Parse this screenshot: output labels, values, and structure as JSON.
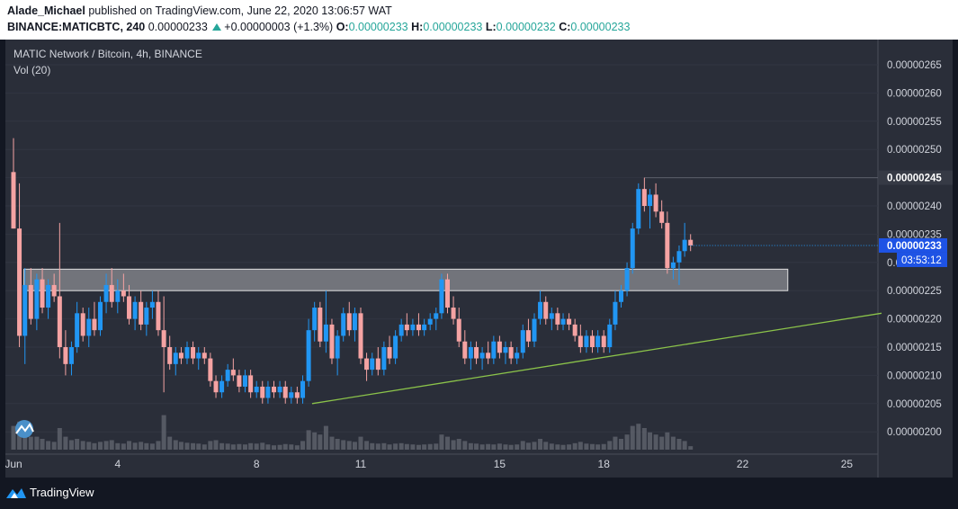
{
  "header": {
    "author": "Alade_Michael",
    "published_text": "published on TradingView.com, June 22, 2020 13:06:57 WAT",
    "symbol": "BINANCE:MATICBTC, 240",
    "last_price": "0.00000233",
    "change": "+0.00000003 (+1.3%)",
    "o_label": "O:",
    "o_value": "0.00000233",
    "h_label": "H:",
    "h_value": "0.00000233",
    "l_label": "L:",
    "l_value": "0.00000232",
    "c_label": "C:",
    "c_value": "0.00000233"
  },
  "legend": {
    "title": "MATIC Network / Bitcoin, 4h, BINANCE",
    "volume": "Vol (20)"
  },
  "footer": {
    "brand": "TradingView"
  },
  "colors": {
    "background": "#2a2e39",
    "up": "#2196f3",
    "down": "#f5a3a3",
    "volume": "#5d606b",
    "zone": "#c9cacd",
    "trendline": "#8bc34a",
    "price_badge": "#1e53e5",
    "header_value": "#26a69a"
  },
  "chart_data": {
    "type": "candlestick",
    "x_ticks": [
      "Jun",
      "4",
      "8",
      "11",
      "15",
      "18",
      "22",
      "25"
    ],
    "y_ticks": [
      "0.00000265",
      "0.00000260",
      "0.00000255",
      "0.00000250",
      "0.00000245",
      "0.00000240",
      "0.00000235",
      "0.00000230",
      "0.00000225",
      "0.00000220",
      "0.00000215",
      "0.00000210",
      "0.00000205",
      "0.00000200"
    ],
    "ylim": [
      1.98e-06,
      2.67e-06
    ],
    "current_price_label": "0.00000233",
    "countdown_label": "03:53:12",
    "high_marker_label": "0.00000245",
    "high_marker_value": 2.45e-06,
    "resistance_zone": {
      "from_day": 1.3,
      "to_day": 23.3,
      "low": 2.25e-06,
      "high": 2.288e-06
    },
    "trendline": {
      "start": {
        "day": 9.6,
        "price": 2.05e-06
      },
      "end": {
        "day": 26.0,
        "price": 2.21e-06
      }
    },
    "candles": [
      {
        "day": 1.0,
        "o": 2.46e-06,
        "h": 2.52e-06,
        "l": 2.36e-06,
        "c": 2.36e-06,
        "v": 0.55
      },
      {
        "day": 1.17,
        "o": 2.36e-06,
        "h": 2.44e-06,
        "l": 2.15e-06,
        "c": 2.17e-06,
        "v": 0.65
      },
      {
        "day": 1.33,
        "o": 2.17e-06,
        "h": 2.29e-06,
        "l": 2.12e-06,
        "c": 2.26e-06,
        "v": 0.45
      },
      {
        "day": 1.5,
        "o": 2.26e-06,
        "h": 2.29e-06,
        "l": 2.19e-06,
        "c": 2.2e-06,
        "v": 0.3
      },
      {
        "day": 1.67,
        "o": 2.2e-06,
        "h": 2.28e-06,
        "l": 2.18e-06,
        "c": 2.27e-06,
        "v": 0.3
      },
      {
        "day": 1.83,
        "o": 2.27e-06,
        "h": 2.29e-06,
        "l": 2.21e-06,
        "c": 2.22e-06,
        "v": 0.25
      },
      {
        "day": 2.0,
        "o": 2.22e-06,
        "h": 2.27e-06,
        "l": 2.2e-06,
        "c": 2.26e-06,
        "v": 0.2
      },
      {
        "day": 2.17,
        "o": 2.26e-06,
        "h": 2.28e-06,
        "l": 2.23e-06,
        "c": 2.24e-06,
        "v": 0.18
      },
      {
        "day": 2.33,
        "o": 2.24e-06,
        "h": 2.37e-06,
        "l": 2.13e-06,
        "c": 2.15e-06,
        "v": 0.5
      },
      {
        "day": 2.5,
        "o": 2.15e-06,
        "h": 2.18e-06,
        "l": 2.1e-06,
        "c": 2.12e-06,
        "v": 0.3
      },
      {
        "day": 2.67,
        "o": 2.12e-06,
        "h": 2.16e-06,
        "l": 2.1e-06,
        "c": 2.15e-06,
        "v": 0.22
      },
      {
        "day": 2.83,
        "o": 2.15e-06,
        "h": 2.23e-06,
        "l": 2.14e-06,
        "c": 2.21e-06,
        "v": 0.25
      },
      {
        "day": 3.0,
        "o": 2.21e-06,
        "h": 2.22e-06,
        "l": 2.16e-06,
        "c": 2.17e-06,
        "v": 0.2
      },
      {
        "day": 3.17,
        "o": 2.17e-06,
        "h": 2.22e-06,
        "l": 2.15e-06,
        "c": 2.2e-06,
        "v": 0.18
      },
      {
        "day": 3.33,
        "o": 2.2e-06,
        "h": 2.23e-06,
        "l": 2.17e-06,
        "c": 2.18e-06,
        "v": 0.15
      },
      {
        "day": 3.5,
        "o": 2.18e-06,
        "h": 2.24e-06,
        "l": 2.17e-06,
        "c": 2.23e-06,
        "v": 0.18
      },
      {
        "day": 3.67,
        "o": 2.23e-06,
        "h": 2.28e-06,
        "l": 2.21e-06,
        "c": 2.26e-06,
        "v": 0.2
      },
      {
        "day": 3.83,
        "o": 2.26e-06,
        "h": 2.29e-06,
        "l": 2.22e-06,
        "c": 2.23e-06,
        "v": 0.22
      },
      {
        "day": 4.0,
        "o": 2.23e-06,
        "h": 2.27e-06,
        "l": 2.21e-06,
        "c": 2.25e-06,
        "v": 0.15
      },
      {
        "day": 4.17,
        "o": 2.25e-06,
        "h": 2.28e-06,
        "l": 2.23e-06,
        "c": 2.24e-06,
        "v": 0.14
      },
      {
        "day": 4.33,
        "o": 2.24e-06,
        "h": 2.26e-06,
        "l": 2.19e-06,
        "c": 2.2e-06,
        "v": 0.2
      },
      {
        "day": 4.5,
        "o": 2.2e-06,
        "h": 2.24e-06,
        "l": 2.18e-06,
        "c": 2.23e-06,
        "v": 0.16
      },
      {
        "day": 4.67,
        "o": 2.23e-06,
        "h": 2.25e-06,
        "l": 2.18e-06,
        "c": 2.19e-06,
        "v": 0.18
      },
      {
        "day": 4.83,
        "o": 2.19e-06,
        "h": 2.23e-06,
        "l": 2.17e-06,
        "c": 2.22e-06,
        "v": 0.15
      },
      {
        "day": 5.0,
        "o": 2.22e-06,
        "h": 2.25e-06,
        "l": 2.2e-06,
        "c": 2.23e-06,
        "v": 0.14
      },
      {
        "day": 5.17,
        "o": 2.23e-06,
        "h": 2.25e-06,
        "l": 2.17e-06,
        "c": 2.18e-06,
        "v": 0.2
      },
      {
        "day": 5.33,
        "o": 2.18e-06,
        "h": 2.24e-06,
        "l": 2.07e-06,
        "c": 2.15e-06,
        "v": 0.8
      },
      {
        "day": 5.5,
        "o": 2.15e-06,
        "h": 2.17e-06,
        "l": 2.11e-06,
        "c": 2.12e-06,
        "v": 0.3
      },
      {
        "day": 5.67,
        "o": 2.12e-06,
        "h": 2.15e-06,
        "l": 2.1e-06,
        "c": 2.14e-06,
        "v": 0.22
      },
      {
        "day": 5.83,
        "o": 2.14e-06,
        "h": 2.15e-06,
        "l": 2.12e-06,
        "c": 2.13e-06,
        "v": 0.18
      },
      {
        "day": 6.0,
        "o": 2.13e-06,
        "h": 2.16e-06,
        "l": 2.12e-06,
        "c": 2.15e-06,
        "v": 0.16
      },
      {
        "day": 6.17,
        "o": 2.15e-06,
        "h": 2.16e-06,
        "l": 2.12e-06,
        "c": 2.13e-06,
        "v": 0.15
      },
      {
        "day": 6.33,
        "o": 2.13e-06,
        "h": 2.15e-06,
        "l": 2.11e-06,
        "c": 2.14e-06,
        "v": 0.14
      },
      {
        "day": 6.5,
        "o": 2.14e-06,
        "h": 2.15e-06,
        "l": 2.12e-06,
        "c": 2.13e-06,
        "v": 0.12
      },
      {
        "day": 6.67,
        "o": 2.13e-06,
        "h": 2.14e-06,
        "l": 2.08e-06,
        "c": 2.09e-06,
        "v": 0.2
      },
      {
        "day": 6.83,
        "o": 2.09e-06,
        "h": 2.1e-06,
        "l": 2.06e-06,
        "c": 2.07e-06,
        "v": 0.22
      },
      {
        "day": 7.0,
        "o": 2.07e-06,
        "h": 2.1e-06,
        "l": 2.06e-06,
        "c": 2.09e-06,
        "v": 0.15
      },
      {
        "day": 7.17,
        "o": 2.09e-06,
        "h": 2.12e-06,
        "l": 2.08e-06,
        "c": 2.11e-06,
        "v": 0.14
      },
      {
        "day": 7.33,
        "o": 2.11e-06,
        "h": 2.13e-06,
        "l": 2.09e-06,
        "c": 2.1e-06,
        "v": 0.12
      },
      {
        "day": 7.5,
        "o": 2.1e-06,
        "h": 2.11e-06,
        "l": 2.07e-06,
        "c": 2.08e-06,
        "v": 0.13
      },
      {
        "day": 7.67,
        "o": 2.08e-06,
        "h": 2.11e-06,
        "l": 2.07e-06,
        "c": 2.1e-06,
        "v": 0.12
      },
      {
        "day": 7.83,
        "o": 2.1e-06,
        "h": 2.11e-06,
        "l": 2.06e-06,
        "c": 2.07e-06,
        "v": 0.15
      },
      {
        "day": 8.0,
        "o": 2.07e-06,
        "h": 2.09e-06,
        "l": 2.06e-06,
        "c": 2.08e-06,
        "v": 0.14
      },
      {
        "day": 8.17,
        "o": 2.08e-06,
        "h": 2.09e-06,
        "l": 2.05e-06,
        "c": 2.06e-06,
        "v": 0.16
      },
      {
        "day": 8.33,
        "o": 2.06e-06,
        "h": 2.09e-06,
        "l": 2.05e-06,
        "c": 2.08e-06,
        "v": 0.12
      },
      {
        "day": 8.5,
        "o": 2.08e-06,
        "h": 2.09e-06,
        "l": 2.06e-06,
        "c": 2.07e-06,
        "v": 0.1
      },
      {
        "day": 8.67,
        "o": 2.07e-06,
        "h": 2.09e-06,
        "l": 2.06e-06,
        "c": 2.08e-06,
        "v": 0.11
      },
      {
        "day": 8.83,
        "o": 2.08e-06,
        "h": 2.09e-06,
        "l": 2.05e-06,
        "c": 2.06e-06,
        "v": 0.13
      },
      {
        "day": 9.0,
        "o": 2.06e-06,
        "h": 2.08e-06,
        "l": 2.05e-06,
        "c": 2.07e-06,
        "v": 0.12
      },
      {
        "day": 9.17,
        "o": 2.07e-06,
        "h": 2.08e-06,
        "l": 2.05e-06,
        "c": 2.06e-06,
        "v": 0.1
      },
      {
        "day": 9.33,
        "o": 2.06e-06,
        "h": 2.1e-06,
        "l": 2.05e-06,
        "c": 2.09e-06,
        "v": 0.2
      },
      {
        "day": 9.5,
        "o": 2.09e-06,
        "h": 2.2e-06,
        "l": 2.08e-06,
        "c": 2.18e-06,
        "v": 0.45
      },
      {
        "day": 9.67,
        "o": 2.18e-06,
        "h": 2.23e-06,
        "l": 2.16e-06,
        "c": 2.22e-06,
        "v": 0.4
      },
      {
        "day": 9.83,
        "o": 2.22e-06,
        "h": 2.23e-06,
        "l": 2.15e-06,
        "c": 2.16e-06,
        "v": 0.35
      },
      {
        "day": 10.0,
        "o": 2.16e-06,
        "h": 2.25e-06,
        "l": 2.14e-06,
        "c": 2.19e-06,
        "v": 0.55
      },
      {
        "day": 10.17,
        "o": 2.19e-06,
        "h": 2.2e-06,
        "l": 2.12e-06,
        "c": 2.13e-06,
        "v": 0.3
      },
      {
        "day": 10.33,
        "o": 2.13e-06,
        "h": 2.18e-06,
        "l": 2.1e-06,
        "c": 2.17e-06,
        "v": 0.25
      },
      {
        "day": 10.5,
        "o": 2.17e-06,
        "h": 2.22e-06,
        "l": 2.16e-06,
        "c": 2.21e-06,
        "v": 0.22
      },
      {
        "day": 10.67,
        "o": 2.21e-06,
        "h": 2.23e-06,
        "l": 2.17e-06,
        "c": 2.18e-06,
        "v": 0.2
      },
      {
        "day": 10.83,
        "o": 2.18e-06,
        "h": 2.22e-06,
        "l": 2.16e-06,
        "c": 2.21e-06,
        "v": 0.18
      },
      {
        "day": 11.0,
        "o": 2.21e-06,
        "h": 2.22e-06,
        "l": 2.12e-06,
        "c": 2.13e-06,
        "v": 0.3
      },
      {
        "day": 11.17,
        "o": 2.13e-06,
        "h": 2.14e-06,
        "l": 2.09e-06,
        "c": 2.11e-06,
        "v": 0.2
      },
      {
        "day": 11.33,
        "o": 2.11e-06,
        "h": 2.14e-06,
        "l": 2.1e-06,
        "c": 2.13e-06,
        "v": 0.15
      },
      {
        "day": 11.5,
        "o": 2.13e-06,
        "h": 2.15e-06,
        "l": 2.1e-06,
        "c": 2.11e-06,
        "v": 0.14
      },
      {
        "day": 11.67,
        "o": 2.11e-06,
        "h": 2.16e-06,
        "l": 2.1e-06,
        "c": 2.15e-06,
        "v": 0.15
      },
      {
        "day": 11.83,
        "o": 2.15e-06,
        "h": 2.17e-06,
        "l": 2.12e-06,
        "c": 2.13e-06,
        "v": 0.12
      },
      {
        "day": 12.0,
        "o": 2.13e-06,
        "h": 2.18e-06,
        "l": 2.12e-06,
        "c": 2.17e-06,
        "v": 0.14
      },
      {
        "day": 12.17,
        "o": 2.17e-06,
        "h": 2.2e-06,
        "l": 2.16e-06,
        "c": 2.19e-06,
        "v": 0.15
      },
      {
        "day": 12.33,
        "o": 2.19e-06,
        "h": 2.21e-06,
        "l": 2.17e-06,
        "c": 2.18e-06,
        "v": 0.13
      },
      {
        "day": 12.5,
        "o": 2.18e-06,
        "h": 2.2e-06,
        "l": 2.17e-06,
        "c": 2.19e-06,
        "v": 0.12
      },
      {
        "day": 12.67,
        "o": 2.19e-06,
        "h": 2.21e-06,
        "l": 2.17e-06,
        "c": 2.18e-06,
        "v": 0.11
      },
      {
        "day": 12.83,
        "o": 2.18e-06,
        "h": 2.2e-06,
        "l": 2.17e-06,
        "c": 2.19e-06,
        "v": 0.12
      },
      {
        "day": 13.0,
        "o": 2.19e-06,
        "h": 2.21e-06,
        "l": 2.18e-06,
        "c": 2.2e-06,
        "v": 0.13
      },
      {
        "day": 13.17,
        "o": 2.2e-06,
        "h": 2.22e-06,
        "l": 2.18e-06,
        "c": 2.21e-06,
        "v": 0.14
      },
      {
        "day": 13.33,
        "o": 2.21e-06,
        "h": 2.28e-06,
        "l": 2.2e-06,
        "c": 2.27e-06,
        "v": 0.35
      },
      {
        "day": 13.5,
        "o": 2.27e-06,
        "h": 2.28e-06,
        "l": 2.21e-06,
        "c": 2.22e-06,
        "v": 0.3
      },
      {
        "day": 13.67,
        "o": 2.22e-06,
        "h": 2.24e-06,
        "l": 2.19e-06,
        "c": 2.2e-06,
        "v": 0.22
      },
      {
        "day": 13.83,
        "o": 2.2e-06,
        "h": 2.22e-06,
        "l": 2.15e-06,
        "c": 2.16e-06,
        "v": 0.25
      },
      {
        "day": 14.0,
        "o": 2.16e-06,
        "h": 2.18e-06,
        "l": 2.12e-06,
        "c": 2.13e-06,
        "v": 0.2
      },
      {
        "day": 14.17,
        "o": 2.13e-06,
        "h": 2.16e-06,
        "l": 2.11e-06,
        "c": 2.15e-06,
        "v": 0.15
      },
      {
        "day": 14.33,
        "o": 2.15e-06,
        "h": 2.16e-06,
        "l": 2.12e-06,
        "c": 2.13e-06,
        "v": 0.14
      },
      {
        "day": 14.5,
        "o": 2.13e-06,
        "h": 2.15e-06,
        "l": 2.11e-06,
        "c": 2.14e-06,
        "v": 0.12
      },
      {
        "day": 14.67,
        "o": 2.14e-06,
        "h": 2.16e-06,
        "l": 2.12e-06,
        "c": 2.13e-06,
        "v": 0.13
      },
      {
        "day": 14.83,
        "o": 2.13e-06,
        "h": 2.17e-06,
        "l": 2.12e-06,
        "c": 2.16e-06,
        "v": 0.12
      },
      {
        "day": 15.0,
        "o": 2.16e-06,
        "h": 2.17e-06,
        "l": 2.13e-06,
        "c": 2.14e-06,
        "v": 0.14
      },
      {
        "day": 15.17,
        "o": 2.14e-06,
        "h": 2.16e-06,
        "l": 2.12e-06,
        "c": 2.15e-06,
        "v": 0.12
      },
      {
        "day": 15.33,
        "o": 2.15e-06,
        "h": 2.16e-06,
        "l": 2.12e-06,
        "c": 2.13e-06,
        "v": 0.11
      },
      {
        "day": 15.5,
        "o": 2.13e-06,
        "h": 2.15e-06,
        "l": 2.12e-06,
        "c": 2.14e-06,
        "v": 0.12
      },
      {
        "day": 15.67,
        "o": 2.14e-06,
        "h": 2.19e-06,
        "l": 2.13e-06,
        "c": 2.18e-06,
        "v": 0.2
      },
      {
        "day": 15.83,
        "o": 2.18e-06,
        "h": 2.2e-06,
        "l": 2.15e-06,
        "c": 2.16e-06,
        "v": 0.16
      },
      {
        "day": 16.0,
        "o": 2.16e-06,
        "h": 2.21e-06,
        "l": 2.15e-06,
        "c": 2.2e-06,
        "v": 0.18
      },
      {
        "day": 16.17,
        "o": 2.2e-06,
        "h": 2.25e-06,
        "l": 2.19e-06,
        "c": 2.23e-06,
        "v": 0.25
      },
      {
        "day": 16.33,
        "o": 2.23e-06,
        "h": 2.24e-06,
        "l": 2.19e-06,
        "c": 2.2e-06,
        "v": 0.18
      },
      {
        "day": 16.5,
        "o": 2.2e-06,
        "h": 2.22e-06,
        "l": 2.18e-06,
        "c": 2.21e-06,
        "v": 0.14
      },
      {
        "day": 16.67,
        "o": 2.21e-06,
        "h": 2.22e-06,
        "l": 2.18e-06,
        "c": 2.19e-06,
        "v": 0.12
      },
      {
        "day": 16.83,
        "o": 2.19e-06,
        "h": 2.21e-06,
        "l": 2.18e-06,
        "c": 2.2e-06,
        "v": 0.11
      },
      {
        "day": 17.0,
        "o": 2.2e-06,
        "h": 2.21e-06,
        "l": 2.18e-06,
        "c": 2.19e-06,
        "v": 0.12
      },
      {
        "day": 17.17,
        "o": 2.19e-06,
        "h": 2.2e-06,
        "l": 2.16e-06,
        "c": 2.17e-06,
        "v": 0.15
      },
      {
        "day": 17.33,
        "o": 2.17e-06,
        "h": 2.19e-06,
        "l": 2.14e-06,
        "c": 2.15e-06,
        "v": 0.18
      },
      {
        "day": 17.5,
        "o": 2.15e-06,
        "h": 2.18e-06,
        "l": 2.14e-06,
        "c": 2.17e-06,
        "v": 0.14
      },
      {
        "day": 17.67,
        "o": 2.17e-06,
        "h": 2.18e-06,
        "l": 2.14e-06,
        "c": 2.15e-06,
        "v": 0.13
      },
      {
        "day": 17.83,
        "o": 2.15e-06,
        "h": 2.18e-06,
        "l": 2.14e-06,
        "c": 2.17e-06,
        "v": 0.12
      },
      {
        "day": 18.0,
        "o": 2.17e-06,
        "h": 2.18e-06,
        "l": 2.14e-06,
        "c": 2.15e-06,
        "v": 0.13
      },
      {
        "day": 18.17,
        "o": 2.15e-06,
        "h": 2.2e-06,
        "l": 2.14e-06,
        "c": 2.19e-06,
        "v": 0.2
      },
      {
        "day": 18.33,
        "o": 2.19e-06,
        "h": 2.25e-06,
        "l": 2.18e-06,
        "c": 2.23e-06,
        "v": 0.3
      },
      {
        "day": 18.5,
        "o": 2.23e-06,
        "h": 2.26e-06,
        "l": 2.22e-06,
        "c": 2.25e-06,
        "v": 0.25
      },
      {
        "day": 18.67,
        "o": 2.25e-06,
        "h": 2.3e-06,
        "l": 2.24e-06,
        "c": 2.29e-06,
        "v": 0.35
      },
      {
        "day": 18.83,
        "o": 2.29e-06,
        "h": 2.37e-06,
        "l": 2.28e-06,
        "c": 2.36e-06,
        "v": 0.55
      },
      {
        "day": 19.0,
        "o": 2.36e-06,
        "h": 2.44e-06,
        "l": 2.35e-06,
        "c": 2.43e-06,
        "v": 0.6
      },
      {
        "day": 19.17,
        "o": 2.43e-06,
        "h": 2.45e-06,
        "l": 2.39e-06,
        "c": 2.4e-06,
        "v": 0.5
      },
      {
        "day": 19.33,
        "o": 2.4e-06,
        "h": 2.43e-06,
        "l": 2.36e-06,
        "c": 2.42e-06,
        "v": 0.4
      },
      {
        "day": 19.5,
        "o": 2.42e-06,
        "h": 2.44e-06,
        "l": 2.38e-06,
        "c": 2.39e-06,
        "v": 0.35
      },
      {
        "day": 19.67,
        "o": 2.39e-06,
        "h": 2.41e-06,
        "l": 2.36e-06,
        "c": 2.37e-06,
        "v": 0.3
      },
      {
        "day": 19.83,
        "o": 2.37e-06,
        "h": 2.39e-06,
        "l": 2.28e-06,
        "c": 2.29e-06,
        "v": 0.4
      },
      {
        "day": 20.0,
        "o": 2.29e-06,
        "h": 2.31e-06,
        "l": 2.27e-06,
        "c": 2.3e-06,
        "v": 0.3
      },
      {
        "day": 20.17,
        "o": 2.3e-06,
        "h": 2.33e-06,
        "l": 2.26e-06,
        "c": 2.32e-06,
        "v": 0.25
      },
      {
        "day": 20.33,
        "o": 2.32e-06,
        "h": 2.37e-06,
        "l": 2.31e-06,
        "c": 2.34e-06,
        "v": 0.2
      },
      {
        "day": 20.5,
        "o": 2.34e-06,
        "h": 2.35e-06,
        "l": 2.32e-06,
        "c": 2.33e-06,
        "v": 0.08
      }
    ]
  }
}
